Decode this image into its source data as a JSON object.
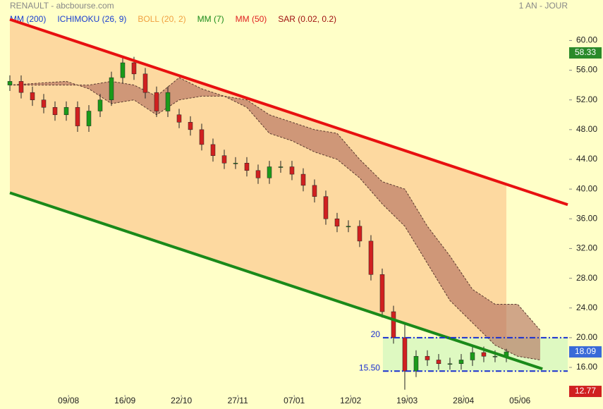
{
  "chart_data": {
    "type": "candlestick",
    "title": "RENAULT - abcbourse.com",
    "subtitle": "1 AN - JOUR",
    "legend": [
      {
        "name": "MM (200)",
        "color": "#1a3fd0"
      },
      {
        "name": "ICHIMOKU (26, 9)",
        "color": "#1a3fd0"
      },
      {
        "name": "BOLL (20, 2)",
        "color": "#f0a040"
      },
      {
        "name": "MM (7)",
        "color": "#1a8a1a"
      },
      {
        "name": "MM (50)",
        "color": "#e02020"
      },
      {
        "name": "SAR (0.02, 0.2)",
        "color": "#a01010"
      }
    ],
    "xlim": [
      0,
      247.2
    ],
    "ylim": [
      12.3,
      64.5
    ],
    "yticks": [
      {
        "value": 16,
        "label": "16.00"
      },
      {
        "value": 20,
        "label": "20.00"
      },
      {
        "value": 24,
        "label": "24.00"
      },
      {
        "value": 28,
        "label": "28.00"
      },
      {
        "value": 32,
        "label": "32.00"
      },
      {
        "value": 36,
        "label": "36.00"
      },
      {
        "value": 40,
        "label": "40.00"
      },
      {
        "value": 44,
        "label": "44.00"
      },
      {
        "value": 48,
        "label": "48.00"
      },
      {
        "value": 52,
        "label": "52.00"
      },
      {
        "value": 56,
        "label": "56.00"
      },
      {
        "value": 60,
        "label": "60.00"
      }
    ],
    "xticks": [
      {
        "value": 26,
        "label": "09/08"
      },
      {
        "value": 51,
        "label": "16/09"
      },
      {
        "value": 76,
        "label": "22/10"
      },
      {
        "value": 101,
        "label": "27/11"
      },
      {
        "value": 126,
        "label": "07/01"
      },
      {
        "value": 151,
        "label": "12/02"
      },
      {
        "value": 176,
        "label": "19/03"
      },
      {
        "value": 201,
        "label": "28/04"
      },
      {
        "value": 226,
        "label": "05/06"
      }
    ],
    "up_color": "#1a9a1a",
    "down_color": "#d02020",
    "x": [
      0,
      5,
      10,
      15,
      20,
      25,
      30,
      35,
      40,
      45,
      50,
      55,
      60,
      65,
      70,
      75,
      80,
      85,
      90,
      95,
      100,
      105,
      110,
      115,
      120,
      125,
      130,
      135,
      140,
      145,
      150,
      155,
      160,
      165,
      170,
      175,
      180,
      185,
      190,
      195,
      200,
      205,
      210,
      215,
      220
    ],
    "open": [
      54,
      54.5,
      53,
      52,
      51,
      50,
      51,
      48.5,
      50.5,
      52,
      55,
      57,
      55.5,
      53,
      50.5,
      50,
      49,
      48,
      46,
      44.5,
      43.5,
      43.5,
      42.5,
      41.5,
      43,
      43,
      42,
      40.5,
      39,
      36,
      35,
      35,
      33,
      28.5,
      23.5,
      20,
      15.5,
      17.5,
      17,
      16.5,
      16.5,
      17,
      18,
      17.5,
      17.5
    ],
    "high": [
      55.3,
      55.3,
      53.8,
      52.8,
      51.8,
      51.8,
      51.8,
      51.3,
      52.8,
      55.8,
      57.8,
      57.8,
      56.3,
      53.8,
      53.8,
      50.8,
      49.8,
      48.8,
      46.8,
      45.3,
      44.3,
      44.3,
      43.3,
      43.8,
      43.8,
      43.8,
      42.8,
      41.3,
      39.8,
      36.8,
      35.8,
      35.8,
      33.8,
      29.3,
      24.3,
      22,
      18.3,
      18.3,
      17.8,
      17.3,
      17.8,
      18.8,
      18.8,
      18.3,
      18.5
    ],
    "low": [
      53.2,
      52.2,
      51.2,
      50.2,
      49.2,
      49.2,
      47.7,
      47.7,
      49.7,
      51.2,
      54.2,
      54.7,
      52.2,
      49.7,
      49.7,
      48.2,
      47.2,
      45.2,
      43.7,
      42.7,
      42.7,
      41.7,
      40.7,
      40.7,
      42.2,
      41.2,
      39.7,
      38.2,
      35.2,
      34.2,
      34.2,
      32.2,
      27.7,
      22.7,
      19.2,
      13,
      14.7,
      16.2,
      15.7,
      15.7,
      15.7,
      16.2,
      16.7,
      16.7,
      16.7
    ],
    "close": [
      54.5,
      53,
      52,
      51,
      50,
      51,
      48.5,
      50.5,
      52,
      55,
      57,
      55.5,
      53,
      50.5,
      53,
      49,
      48,
      46,
      44.5,
      43.5,
      43.5,
      42.5,
      41.5,
      43,
      43,
      42,
      40.5,
      39,
      36,
      35,
      35,
      33,
      28.5,
      23.5,
      20,
      15.5,
      17.5,
      17,
      16.5,
      16.5,
      17,
      18,
      17.5,
      17.5,
      18.09
    ],
    "band": {
      "color": "#fdd9a0",
      "x": [
        0,
        220
      ],
      "upper": [
        62.84,
        40.64
      ],
      "lower": [
        39.5,
        17.41
      ]
    },
    "cloud": {
      "color": "#b06a5e",
      "x": [
        0,
        25,
        30,
        35,
        45,
        55,
        65,
        75,
        85,
        95,
        105,
        115,
        125,
        135,
        145,
        155,
        165,
        175,
        185,
        195,
        205,
        215,
        225,
        235
      ],
      "upper": [
        54,
        54.5,
        54,
        54,
        54.5,
        54,
        52.5,
        55,
        53.5,
        52.5,
        52,
        50,
        49,
        48,
        47.5,
        44,
        41,
        40,
        35,
        31,
        26.5,
        24.5,
        24.5,
        21
      ],
      "lower": [
        54,
        54,
        54,
        53.5,
        51.5,
        52,
        50,
        52,
        52.5,
        52.5,
        51,
        47.5,
        46.5,
        45,
        44,
        41.5,
        38,
        35,
        30,
        25,
        22,
        19,
        17.5,
        17
      ]
    },
    "trendlines": [
      {
        "color": "#e81010",
        "x": [
          0,
          247.2
        ],
        "y": [
          62.84,
          37.9
        ]
      },
      {
        "color": "#1a8a1a",
        "x": [
          0,
          236
        ],
        "y": [
          39.5,
          15.8
        ]
      }
    ],
    "levels": {
      "color": "#1a2fd0",
      "zone_color": "#d8f8c0",
      "x_start": 165.3,
      "items": [
        20,
        {
          "value": 15.5,
          "label": "15.50"
        }
      ]
    },
    "price_tags": [
      {
        "value": 58.33,
        "color": "#2a8a2a"
      },
      {
        "value": 18.09,
        "color": "#3a6ad8"
      },
      {
        "value": 12.77,
        "color": "#d02020"
      }
    ]
  }
}
